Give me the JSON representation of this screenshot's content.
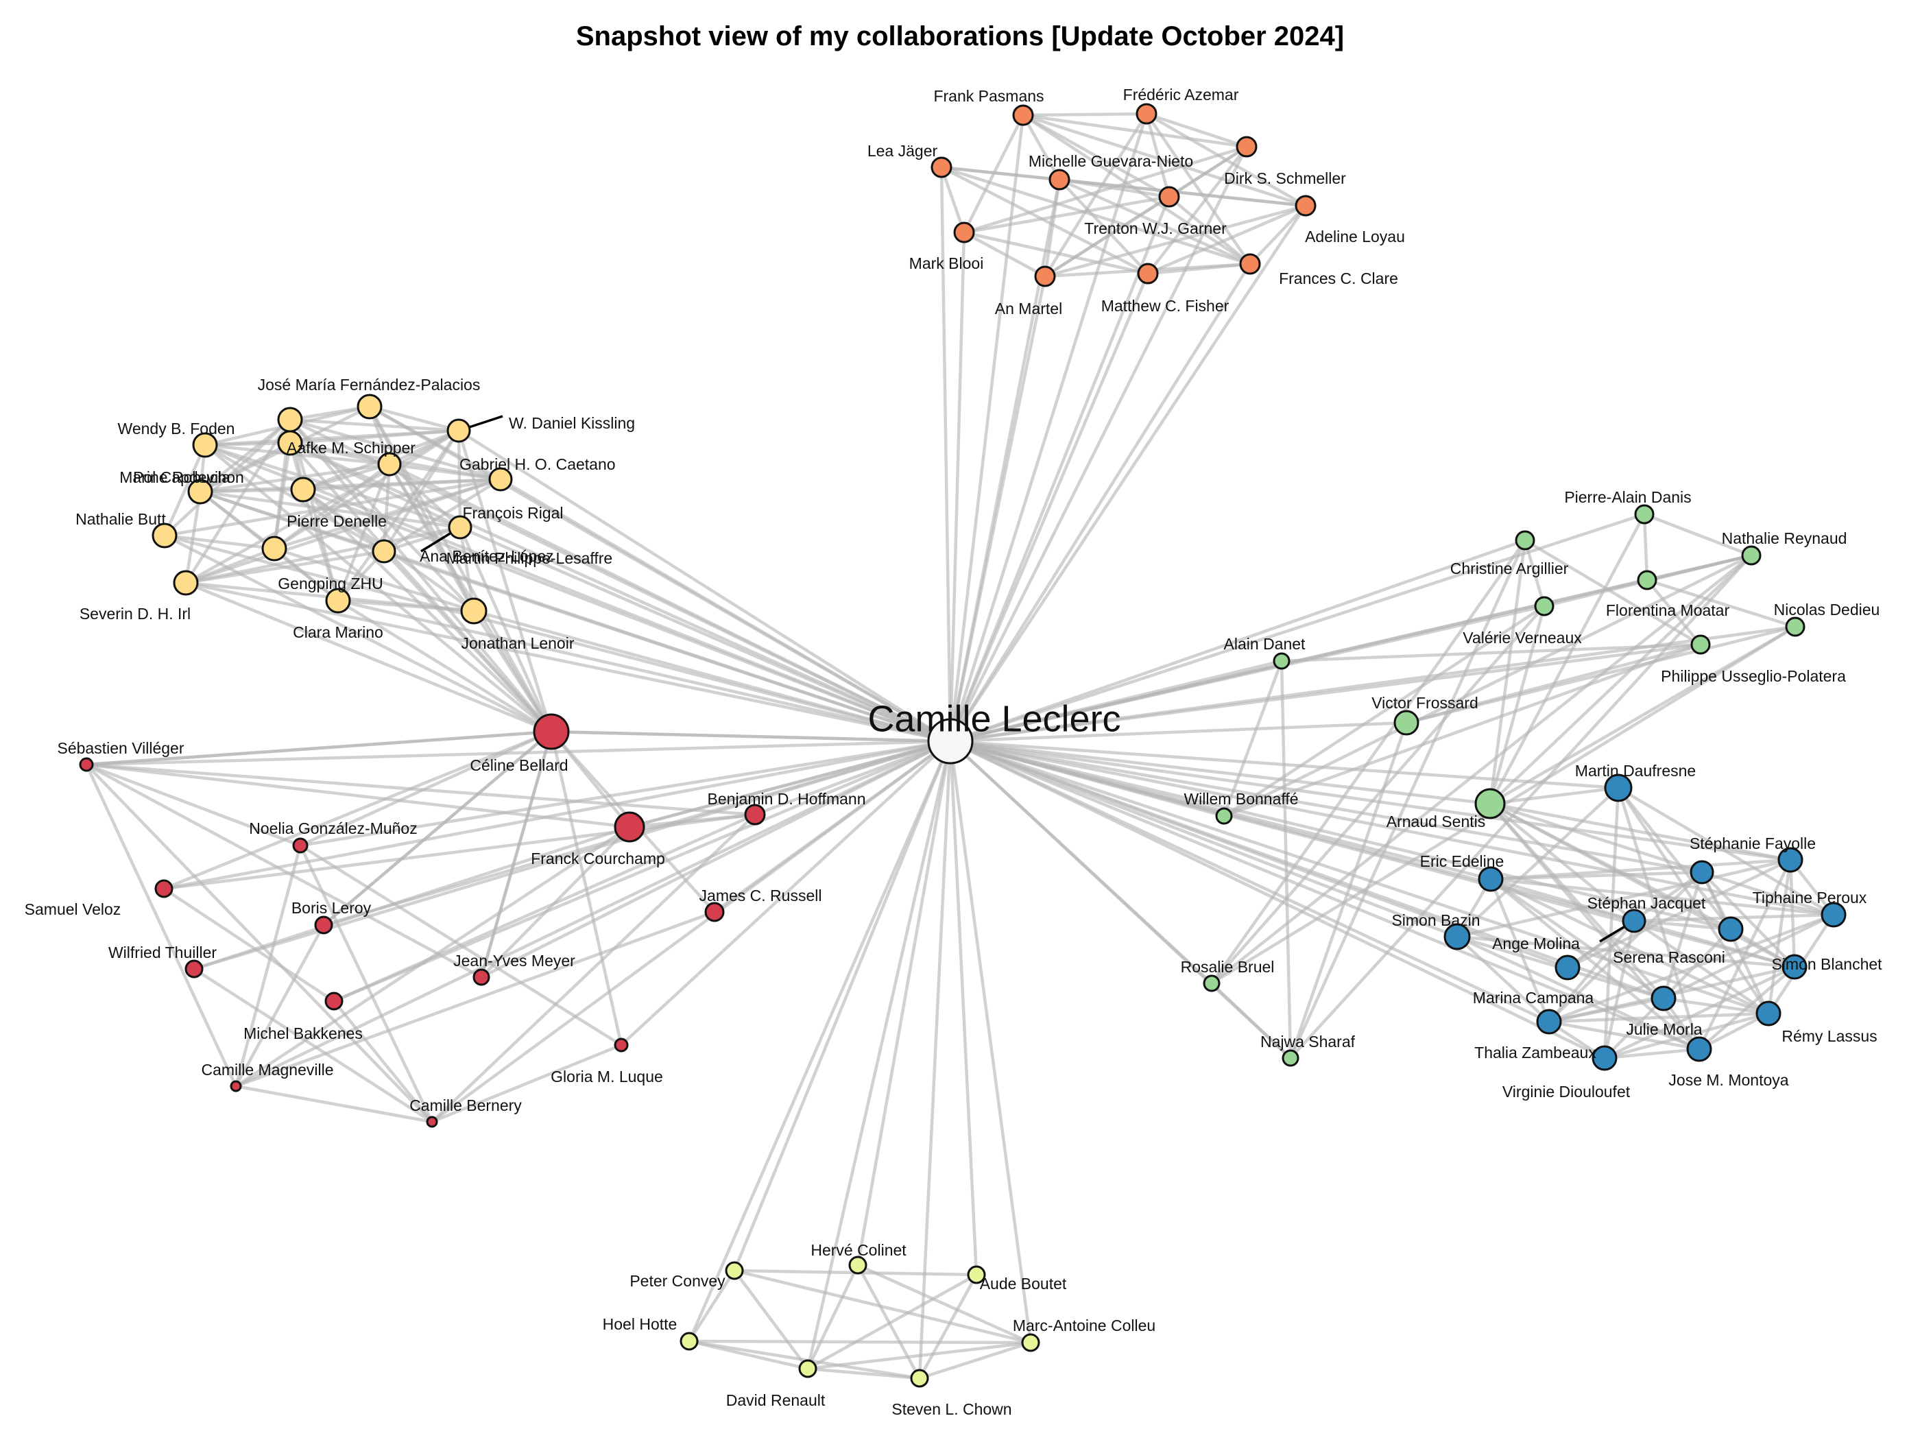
{
  "title": "Snapshot view of my collaborations [Update October 2024]",
  "center": {
    "name": "Camille Leclerc",
    "color": "#f7f7f7"
  },
  "groups": [
    {
      "id": "orange",
      "color": "#f4875a",
      "members": [
        "Frank Pasmans",
        "Frédéric Azemar",
        "Lea Jäger",
        "Michelle Guevara-Nieto",
        "Dirk S. Schmeller",
        "Trenton W.J. Garner",
        "Adeline Loyau",
        "Mark Blooi",
        "An Martel",
        "Matthew C. Fisher",
        "Frances C. Clare"
      ]
    },
    {
      "id": "yellow",
      "color": "#fedc8a",
      "members": [
        "José María Fernández-Palacios",
        "W. Daniel Kissling",
        "Wendy B. Foden",
        "Aafke M. Schipper",
        "Gabriel H. O. Caetano",
        "Marine Robuchon",
        "Pol Capdevila",
        "François Rigal",
        "Pierre Denelle",
        "Nathalie Butt",
        "Martin Philippe-Lesaffre",
        "Ana Benítez-López",
        "Gengping ZHU",
        "Severin D. H. Irl",
        "Clara Marino",
        "Jonathan Lenoir"
      ]
    },
    {
      "id": "red",
      "color": "#d53e4f",
      "members": [
        "Céline Bellard",
        "Franck Courchamp",
        "Sébastien Villéger",
        "Benjamin D. Hoffmann",
        "Noelia González-Muñoz",
        "James C. Russell",
        "Samuel Veloz",
        "Boris Leroy",
        "Wilfried Thuiller",
        "Jean-Yves Meyer",
        "Michel Bakkenes",
        "Camille Magneville",
        "Gloria M. Luque",
        "Camille Bernery"
      ]
    },
    {
      "id": "lime",
      "color": "#e6f598",
      "members": [
        "Hervé Colinet",
        "Peter Convey",
        "Aude Boutet",
        "Hoel Hotte",
        "Marc-Antoine Colleu",
        "David Renault",
        "Steven L. Chown"
      ]
    },
    {
      "id": "green",
      "color": "#99d594",
      "members": [
        "Pierre-Alain Danis",
        "Christine Argillier",
        "Nathalie Reynaud",
        "Florentina Moatar",
        "Valérie Verneaux",
        "Nicolas Dedieu",
        "Alain Danet",
        "Philippe Usseglio-Polatera",
        "Victor Frossard",
        "Willem Bonnaffé",
        "Arnaud Sentis",
        "Rosalie Bruel",
        "Najwa Sharaf"
      ]
    },
    {
      "id": "blue",
      "color": "#3288bd",
      "members": [
        "Martin Daufresne",
        "Stéphanie Fayolle",
        "Eric Edeline",
        "Stéphan Jacquet",
        "Tiphaine Peroux",
        "Simon Bazin",
        "Ange Molina",
        "Serena Rasconi",
        "Marina Campana",
        "Simon Blanchet",
        "Julie Morla",
        "Rémy Lassus",
        "Thalia Zambeaux",
        "Virginie Diouloufet",
        "Jose M. Montoya"
      ]
    }
  ]
}
